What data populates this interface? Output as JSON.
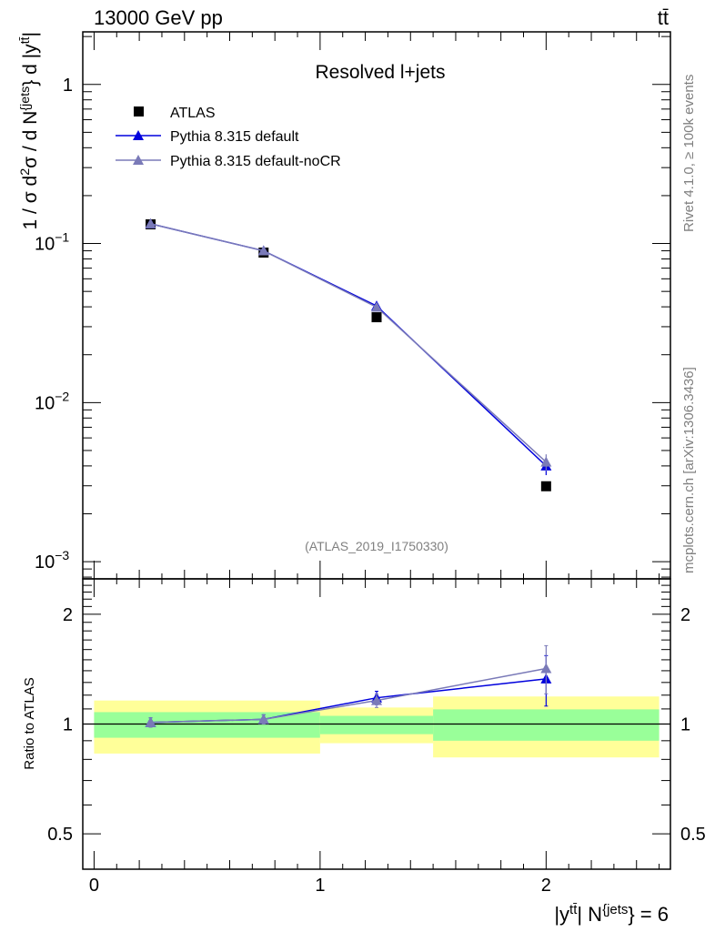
{
  "chart_data": [
    {
      "type": "line",
      "panel": "main",
      "title": "Resolved l+jets",
      "header_left": "13000 GeV pp",
      "header_right": "tt̄",
      "ylabel_parts": [
        {
          "t": "1 / σ d",
          "s": false
        },
        {
          "t": "2",
          "s": true
        },
        {
          "t": "σ / d N",
          "s": false
        },
        {
          "t": "{jets",
          "s": true
        },
        {
          "t": "} d |y",
          "s": false
        },
        {
          "t": "tt̄",
          "s": true
        },
        {
          "t": "|",
          "s": false
        }
      ],
      "yscale": "log",
      "ylim": [
        0.00078,
        2.14
      ],
      "xlim": [
        -0.05,
        2.55
      ],
      "ytick_labels": [
        {
          "v": 1,
          "base": "1",
          "exp": ""
        },
        {
          "v": 0.1,
          "base": "10",
          "exp": "−1"
        },
        {
          "v": 0.01,
          "base": "10",
          "exp": "−2"
        },
        {
          "v": 0.001,
          "base": "10",
          "exp": "−3"
        }
      ],
      "watermark": "(ATLAS_2019_I1750330)",
      "side_label_top": "Rivet 4.1.0, ≥ 100k events",
      "side_label_bottom": "mcplots.cern.ch [arXiv:1306.3436]",
      "legend_position": "top-left",
      "series": [
        {
          "name": "ATLAS",
          "color": "#000000",
          "marker": "square",
          "x": [
            0.25,
            0.75,
            1.25,
            2.0
          ],
          "y": [
            0.132,
            0.0877,
            0.0344,
            0.00298
          ]
        },
        {
          "name": "Pythia 8.315 default",
          "color": "#0000dd",
          "marker": "triangle",
          "x": [
            0.25,
            0.75,
            1.25,
            2.0
          ],
          "y": [
            0.133,
            0.09,
            0.0405,
            0.004
          ],
          "yerr": [
            0.002,
            0.002,
            0.002,
            0.0005
          ]
        },
        {
          "name": "Pythia 8.315 default-noCR",
          "color": "#7a7ab8",
          "marker": "triangle",
          "x": [
            0.25,
            0.75,
            1.25,
            2.0
          ],
          "y": [
            0.133,
            0.09,
            0.0398,
            0.00423
          ],
          "yerr": [
            0.002,
            0.002,
            0.002,
            0.0005
          ]
        }
      ]
    },
    {
      "type": "line",
      "panel": "ratio",
      "ylabel": "Ratio to ATLAS",
      "xlabel_parts": [
        {
          "t": "|y",
          "s": false
        },
        {
          "t": "tt̄",
          "s": true
        },
        {
          "t": "| N",
          "s": false
        },
        {
          "t": "{jets",
          "s": true
        },
        {
          "t": "} = 6",
          "s": false
        }
      ],
      "yscale": "log",
      "ylim": [
        0.4,
        2.5
      ],
      "xlim": [
        -0.05,
        2.55
      ],
      "xtick_labels": [
        "0",
        "1",
        "2"
      ],
      "ytick_labels": [
        {
          "v": 2,
          "label": "2"
        },
        {
          "v": 1,
          "label": "1"
        },
        {
          "v": 0.5,
          "label": "0.5"
        }
      ],
      "bands": [
        {
          "x0": 0,
          "x1": 1,
          "yellow": [
            0.83,
            1.16
          ],
          "green": [
            0.917,
            1.078
          ]
        },
        {
          "x0": 1,
          "x1": 1.5,
          "yellow": [
            0.886,
            1.11
          ],
          "green": [
            0.938,
            1.053
          ]
        },
        {
          "x0": 1.5,
          "x1": 2.5,
          "yellow": [
            0.81,
            1.19
          ],
          "green": [
            0.9,
            1.097
          ]
        }
      ],
      "band_colors": {
        "yellow": "#ffff99",
        "green": "#99ff99"
      },
      "series": [
        {
          "name": "Pythia 8.315 default",
          "color": "#0000dd",
          "x": [
            0.25,
            0.75,
            1.25,
            2.0
          ],
          "y": [
            1.01,
            1.03,
            1.18,
            1.33
          ],
          "ylo": [
            0.98,
            1.0,
            1.13,
            1.12
          ],
          "yhi": [
            1.04,
            1.06,
            1.23,
            1.54
          ]
        },
        {
          "name": "Pythia 8.315 default-noCR",
          "color": "#7a7ab8",
          "x": [
            0.25,
            0.75,
            1.25,
            2.0
          ],
          "y": [
            1.01,
            1.03,
            1.16,
            1.42
          ],
          "ylo": [
            0.98,
            1.0,
            1.11,
            1.21
          ],
          "yhi": [
            1.04,
            1.06,
            1.21,
            1.64
          ]
        }
      ]
    }
  ]
}
